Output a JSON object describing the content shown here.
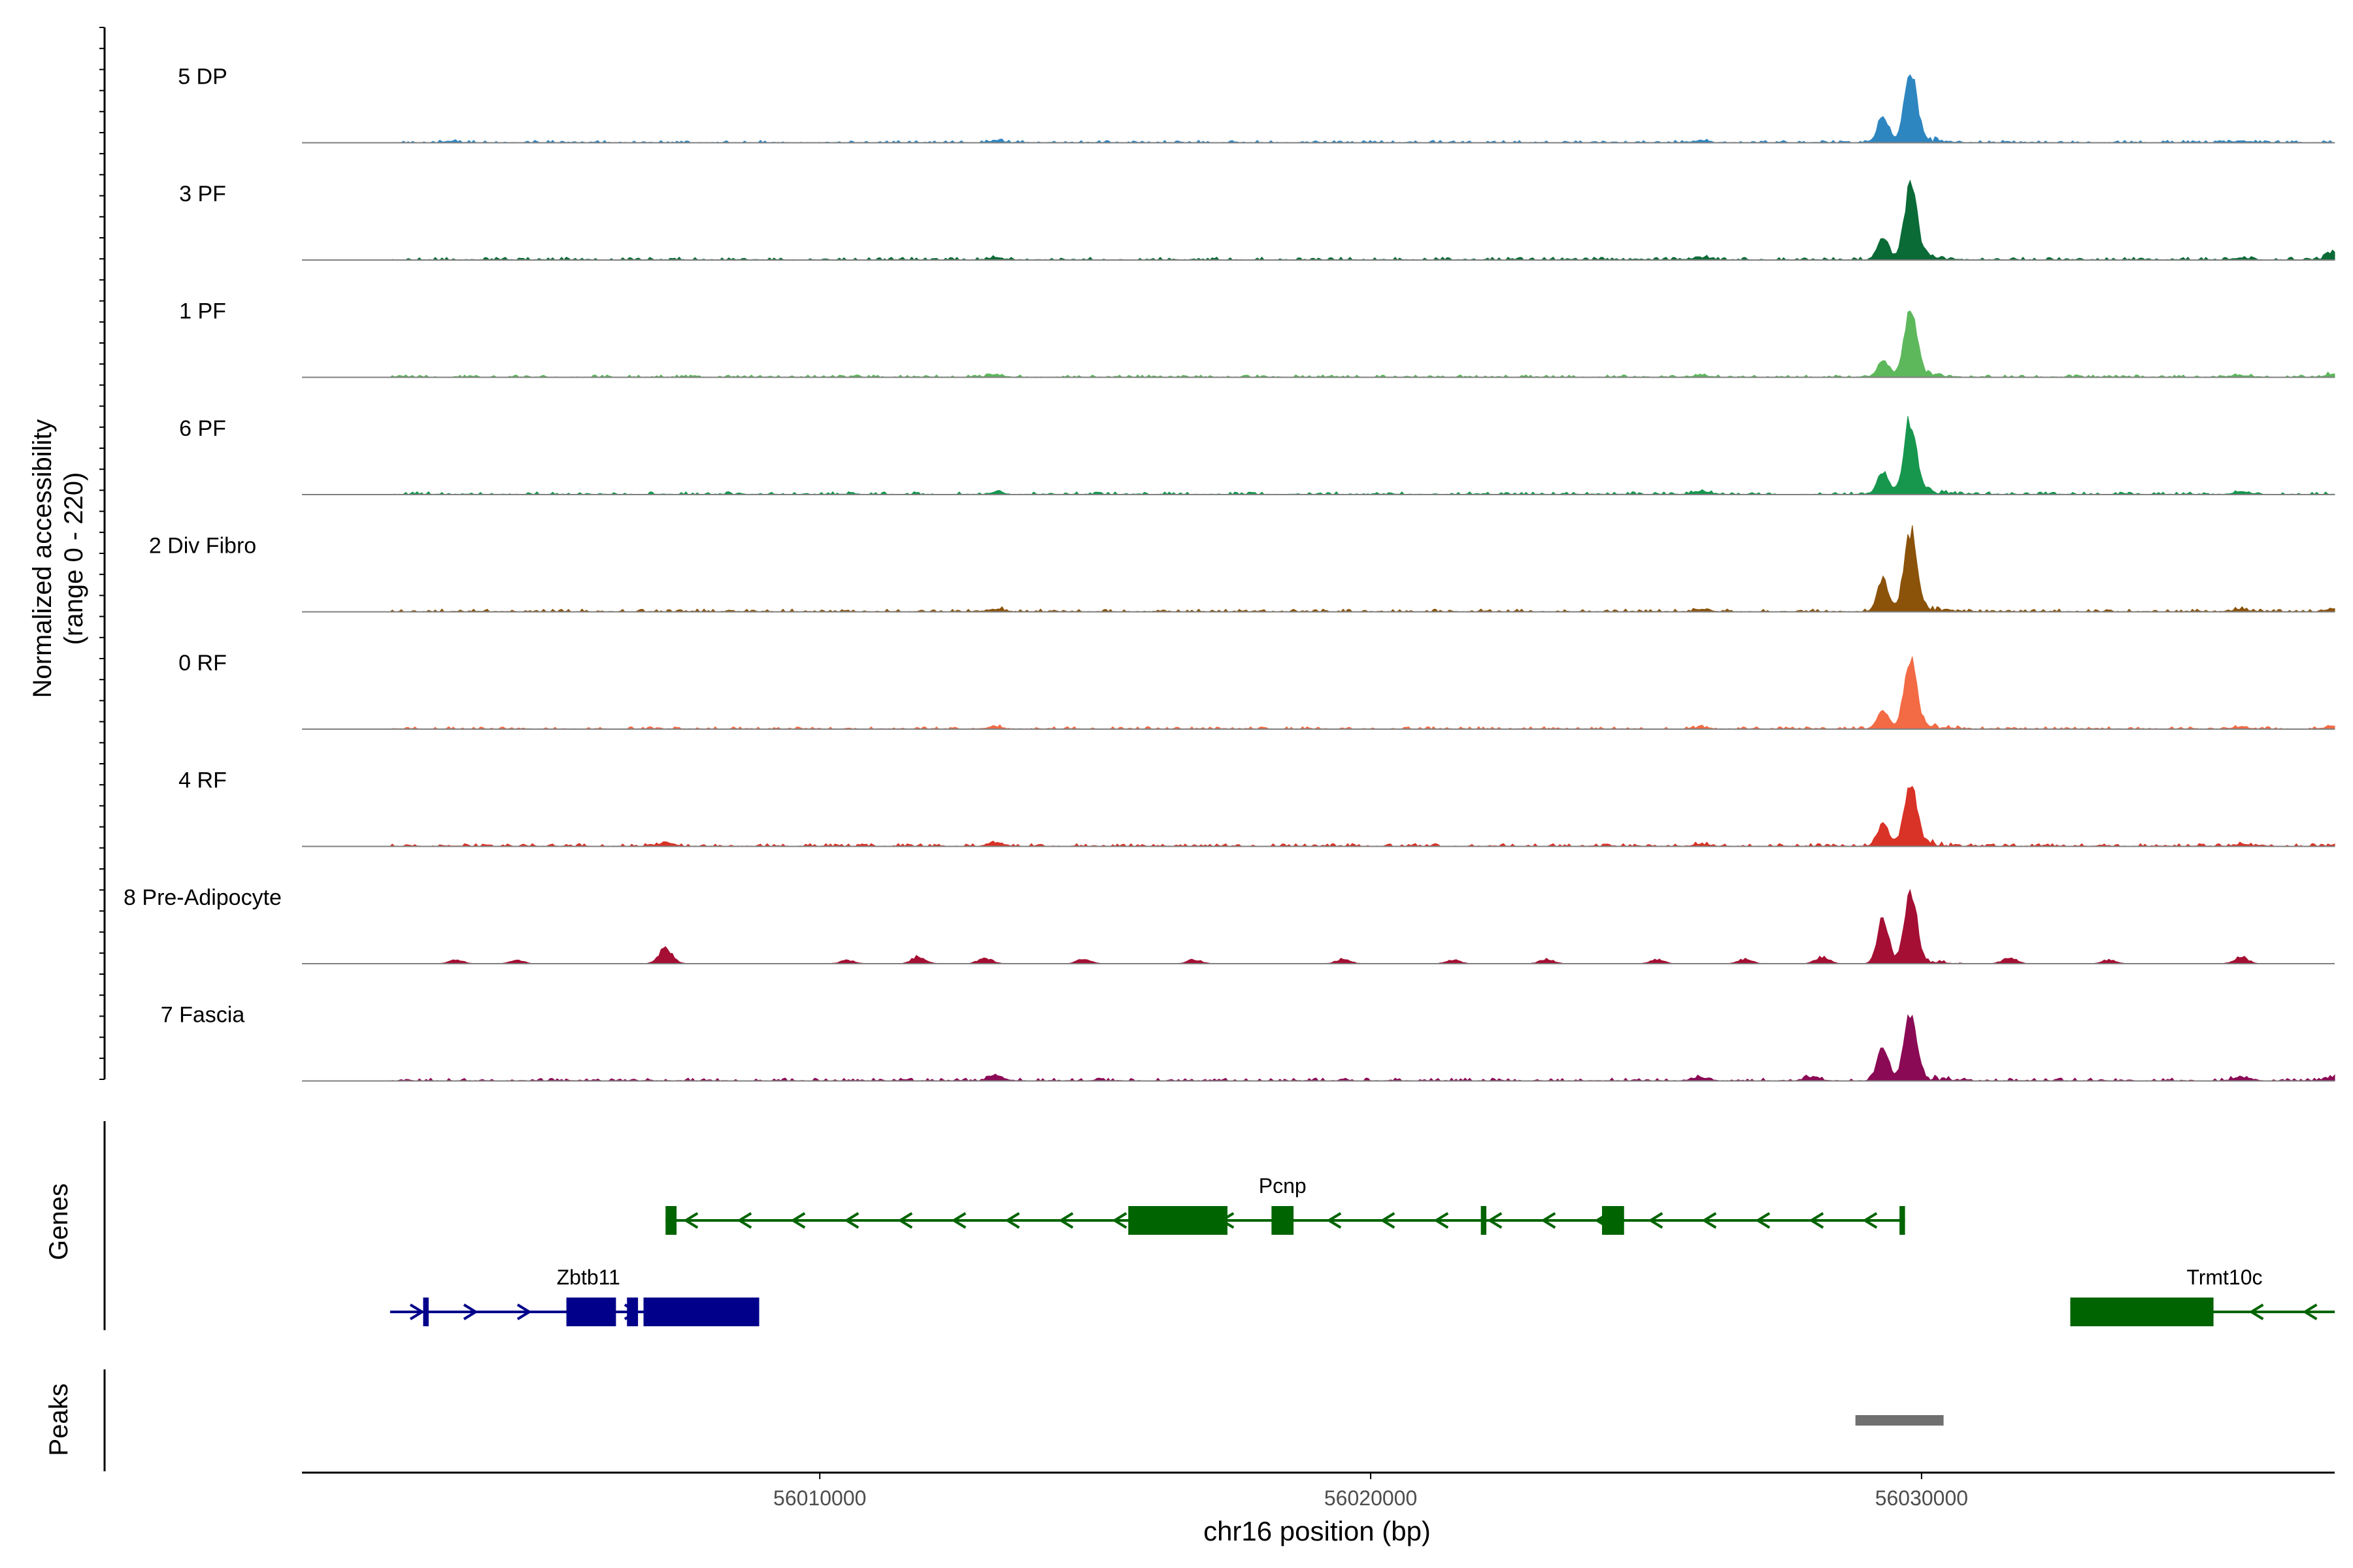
{
  "chart_data": {
    "type": "area",
    "title": "",
    "ylabel_line1": "Normalized accessibility",
    "ylabel_line2": "(range 0 - 220)",
    "xlabel": "chr16 position (bp)",
    "xlim": [
      56000600,
      56037500
    ],
    "ylim": [
      0,
      220
    ],
    "xticks": [
      56010000,
      56020000,
      56030000
    ],
    "xtick_labels": [
      "56010000",
      "56020000",
      "56030000"
    ],
    "grid": false,
    "legend": "none",
    "series": [
      {
        "name": "5 DP",
        "color": "#2E86C1",
        "peak_main": 180,
        "peak_left": 70,
        "bg": 6,
        "bumps": [
          {
            "x": 56003300,
            "h": 4
          },
          {
            "x": 56013200,
            "h": 5
          },
          {
            "x": 56026000,
            "h": 6
          },
          {
            "x": 56035800,
            "h": 5
          }
        ]
      },
      {
        "name": "3 PF",
        "color": "#0B6B37",
        "peak_main": 190,
        "peak_left": 60,
        "bg": 7,
        "bumps": [
          {
            "x": 56013200,
            "h": 6
          },
          {
            "x": 56026000,
            "h": 7
          },
          {
            "x": 56035800,
            "h": 6
          },
          {
            "x": 56037500,
            "h": 25
          }
        ]
      },
      {
        "name": "1 PF",
        "color": "#5DB85C",
        "peak_main": 175,
        "peak_left": 45,
        "bg": 6,
        "bumps": [
          {
            "x": 56013200,
            "h": 6
          },
          {
            "x": 56026000,
            "h": 6
          },
          {
            "x": 56035800,
            "h": 6
          },
          {
            "x": 56037500,
            "h": 12
          }
        ]
      },
      {
        "name": "6 PF",
        "color": "#17964E",
        "peak_main": 190,
        "peak_left": 60,
        "bg": 7,
        "bumps": [
          {
            "x": 56013200,
            "h": 6
          },
          {
            "x": 56026000,
            "h": 10
          },
          {
            "x": 56035800,
            "h": 8
          }
        ]
      },
      {
        "name": "2 Div Fibro",
        "color": "#8B5209",
        "peak_main": 200,
        "peak_left": 85,
        "bg": 7,
        "bumps": [
          {
            "x": 56013200,
            "h": 8
          },
          {
            "x": 56026000,
            "h": 6
          },
          {
            "x": 56035800,
            "h": 6
          },
          {
            "x": 56037500,
            "h": 10
          }
        ]
      },
      {
        "name": "0 RF",
        "color": "#F26B45",
        "peak_main": 180,
        "peak_left": 50,
        "bg": 6,
        "bumps": [
          {
            "x": 56013200,
            "h": 6
          },
          {
            "x": 56026000,
            "h": 5
          },
          {
            "x": 56035800,
            "h": 6
          },
          {
            "x": 56037500,
            "h": 10
          }
        ]
      },
      {
        "name": "4 RF",
        "color": "#D93226",
        "peak_main": 155,
        "peak_left": 60,
        "bg": 7,
        "bumps": [
          {
            "x": 56007200,
            "h": 10
          },
          {
            "x": 56013200,
            "h": 12
          },
          {
            "x": 56026000,
            "h": 6
          },
          {
            "x": 56035800,
            "h": 6
          }
        ]
      },
      {
        "name": "8 Pre-Adipocyte",
        "color": "#A50F33",
        "peak_main": 185,
        "peak_left": 125,
        "bg": 0,
        "bumps": [
          {
            "x": 56003400,
            "h": 12
          },
          {
            "x": 56004500,
            "h": 10
          },
          {
            "x": 56007200,
            "h": 45
          },
          {
            "x": 56010500,
            "h": 10
          },
          {
            "x": 56011800,
            "h": 22
          },
          {
            "x": 56013000,
            "h": 18
          },
          {
            "x": 56014800,
            "h": 14
          },
          {
            "x": 56016800,
            "h": 12
          },
          {
            "x": 56019500,
            "h": 14
          },
          {
            "x": 56021500,
            "h": 12
          },
          {
            "x": 56023200,
            "h": 14
          },
          {
            "x": 56025200,
            "h": 12
          },
          {
            "x": 56026800,
            "h": 14
          },
          {
            "x": 56028200,
            "h": 20
          },
          {
            "x": 56031600,
            "h": 18
          },
          {
            "x": 56033400,
            "h": 12
          },
          {
            "x": 56035800,
            "h": 20
          }
        ]
      },
      {
        "name": "7 Fascia",
        "color": "#8B0A55",
        "peak_main": 170,
        "peak_left": 90,
        "bg": 7,
        "bumps": [
          {
            "x": 56013200,
            "h": 15
          },
          {
            "x": 56026000,
            "h": 10
          },
          {
            "x": 56028000,
            "h": 12
          },
          {
            "x": 56035800,
            "h": 12
          },
          {
            "x": 56037500,
            "h": 12
          }
        ]
      }
    ],
    "genes": [
      {
        "name": "Pcnp",
        "color": "#006400",
        "strand": "-",
        "start": 56007200,
        "end": 56029700,
        "exons": [
          [
            56007200,
            56007400
          ],
          [
            56015600,
            56017400
          ],
          [
            56018200,
            56018600
          ],
          [
            56022000,
            56022100
          ],
          [
            56024200,
            56024600
          ],
          [
            56029600,
            56029700
          ]
        ]
      },
      {
        "name": "Zbtb11",
        "color": "#00008B",
        "strand": "+",
        "start": 56002200,
        "end": 56008900,
        "exons": [
          [
            56002800,
            56002900
          ],
          [
            56005400,
            56006300
          ],
          [
            56006500,
            56006700
          ],
          [
            56006800,
            56008900
          ]
        ]
      },
      {
        "name": "Trmt10c",
        "color": "#006400",
        "strand": "-",
        "start": 56032700,
        "end": 56037500,
        "exons": [
          [
            56032700,
            56035300
          ]
        ]
      }
    ],
    "peaks": [
      [
        56028800,
        56030400
      ]
    ],
    "track_labels": {
      "genes": "Genes",
      "peaks": "Peaks"
    }
  },
  "colors": {
    "axis": "#000000",
    "baseline": "#808080",
    "peak_bar": "#707070",
    "tick_label": "#4D4D4D"
  }
}
